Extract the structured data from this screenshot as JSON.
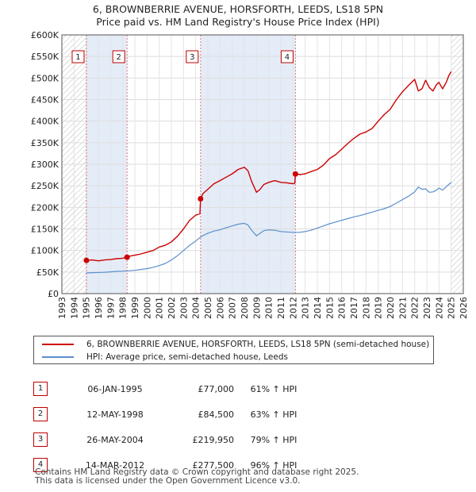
{
  "title_line1": "6, BROWNBERRIE AVENUE, HORSFORTH, LEEDS, LS18 5PN",
  "title_line2": "Price paid vs. HM Land Registry's House Price Index (HPI)",
  "legend": {
    "property": "6, BROWNBERRIE AVENUE, HORSFORTH, LEEDS, LS18 5PN (semi-detached house)",
    "hpi": "HPI: Average price, semi-detached house, Leeds"
  },
  "colors": {
    "property": "#cc0000",
    "hpi": "#5b8fcc",
    "shade": "#e4ecf8",
    "marker_line": "#dd7777"
  },
  "transactions": [
    {
      "num": "1",
      "date": "06-JAN-1995",
      "price": "£77,000",
      "hpi": "61% ↑ HPI"
    },
    {
      "num": "2",
      "date": "12-MAY-1998",
      "price": "£84,500",
      "hpi": "63% ↑ HPI"
    },
    {
      "num": "3",
      "date": "26-MAY-2004",
      "price": "£219,950",
      "hpi": "79% ↑ HPI"
    },
    {
      "num": "4",
      "date": "14-MAR-2012",
      "price": "£277,500",
      "hpi": "96% ↑ HPI"
    }
  ],
  "footer_line1": "Contains HM Land Registry data © Crown copyright and database right 2025.",
  "footer_line2": "This data is licensed under the Open Government Licence v3.0.",
  "chart_data": {
    "type": "line",
    "title": "6, BROWNBERRIE AVENUE, HORSFORTH, LEEDS, LS18 5PN",
    "subtitle": "Price paid vs. HM Land Registry's House Price Index (HPI)",
    "xlim": [
      1993,
      2026
    ],
    "ylim": [
      0,
      600000
    ],
    "x_ticks": [
      "1993",
      "1994",
      "1995",
      "1996",
      "1997",
      "1998",
      "1999",
      "2000",
      "2001",
      "2002",
      "2003",
      "2004",
      "2005",
      "2006",
      "2007",
      "2008",
      "2009",
      "2010",
      "2011",
      "2012",
      "2013",
      "2014",
      "2015",
      "2016",
      "2017",
      "2018",
      "2019",
      "2020",
      "2021",
      "2022",
      "2023",
      "2024",
      "2025",
      "2026"
    ],
    "y_ticks": [
      {
        "value": 0,
        "label": "£0"
      },
      {
        "value": 50000,
        "label": "£50K"
      },
      {
        "value": 100000,
        "label": "£100K"
      },
      {
        "value": 150000,
        "label": "£150K"
      },
      {
        "value": 200000,
        "label": "£200K"
      },
      {
        "value": 250000,
        "label": "£250K"
      },
      {
        "value": 300000,
        "label": "£300K"
      },
      {
        "value": 350000,
        "label": "£350K"
      },
      {
        "value": 400000,
        "label": "£400K"
      },
      {
        "value": 450000,
        "label": "£450K"
      },
      {
        "value": 500000,
        "label": "£500K"
      },
      {
        "value": 550000,
        "label": "£550K"
      },
      {
        "value": 600000,
        "label": "£600K"
      }
    ],
    "shaded_ranges": [
      [
        1995.02,
        1998.36
      ],
      [
        2004.4,
        2012.2
      ]
    ],
    "hatched_ranges": [
      [
        1993,
        1995.0
      ],
      [
        2025.0,
        2026
      ]
    ],
    "sales": [
      {
        "label": "1",
        "x": 1995.02,
        "y": 77000
      },
      {
        "label": "2",
        "x": 1998.36,
        "y": 84500
      },
      {
        "label": "3",
        "x": 2004.4,
        "y": 219950
      },
      {
        "label": "4",
        "x": 2012.2,
        "y": 277500
      }
    ],
    "series": [
      {
        "name": "6, BROWNBERRIE AVENUE, HORSFORTH, LEEDS, LS18 5PN (semi-detached house)",
        "x": [
          1995.02,
          1995.5,
          1996,
          1996.5,
          1997,
          1997.5,
          1998,
          1998.36,
          1998.6,
          1999,
          1999.5,
          2000,
          2000.5,
          2001,
          2001.5,
          2002,
          2002.5,
          2003,
          2003.5,
          2004,
          2004.35,
          2004.4,
          2004.6,
          2005,
          2005.5,
          2006,
          2006.5,
          2007,
          2007.5,
          2008,
          2008.3,
          2008.6,
          2009,
          2009.3,
          2009.6,
          2010,
          2010.5,
          2011,
          2011.5,
          2012,
          2012.15,
          2012.2,
          2012.6,
          2013,
          2013.5,
          2014,
          2014.5,
          2015,
          2015.5,
          2016,
          2016.5,
          2017,
          2017.5,
          2018,
          2018.5,
          2019,
          2019.5,
          2020,
          2020.5,
          2021,
          2021.5,
          2022,
          2022.3,
          2022.6,
          2022.9,
          2023.2,
          2023.5,
          2023.8,
          2024,
          2024.3,
          2024.6,
          2024.8,
          2025
        ],
        "y": [
          77000,
          78000,
          76000,
          78000,
          79000,
          81000,
          82000,
          84500,
          87000,
          89000,
          92000,
          96000,
          100000,
          108000,
          112000,
          120000,
          133000,
          150000,
          170000,
          182000,
          185000,
          219950,
          232000,
          242000,
          255000,
          262000,
          270000,
          278000,
          288000,
          293000,
          285000,
          260000,
          235000,
          242000,
          253000,
          258000,
          262000,
          258000,
          257000,
          255000,
          256000,
          277500,
          276000,
          278000,
          283000,
          288000,
          298000,
          313000,
          322000,
          335000,
          348000,
          360000,
          370000,
          375000,
          383000,
          400000,
          415000,
          428000,
          450000,
          468000,
          483000,
          497000,
          470000,
          475000,
          495000,
          478000,
          470000,
          485000,
          490000,
          475000,
          490000,
          505000,
          515000
        ]
      },
      {
        "name": "HPI: Average price, semi-detached house, Leeds",
        "x": [
          1995,
          1995.5,
          1996,
          1996.5,
          1997,
          1997.5,
          1998,
          1998.5,
          1999,
          1999.5,
          2000,
          2000.5,
          2001,
          2001.5,
          2002,
          2002.5,
          2003,
          2003.5,
          2004,
          2004.5,
          2005,
          2005.5,
          2006,
          2006.5,
          2007,
          2007.5,
          2008,
          2008.3,
          2008.6,
          2009,
          2009.3,
          2009.6,
          2010,
          2010.5,
          2011,
          2011.5,
          2012,
          2012.5,
          2013,
          2013.5,
          2014,
          2014.5,
          2015,
          2015.5,
          2016,
          2016.5,
          2017,
          2017.5,
          2018,
          2018.5,
          2019,
          2019.5,
          2020,
          2020.5,
          2021,
          2021.5,
          2022,
          2022.3,
          2022.6,
          2022.9,
          2023.2,
          2023.5,
          2023.8,
          2024,
          2024.3,
          2024.6,
          2024.8,
          2025
        ],
        "y": [
          48000,
          48500,
          49000,
          49500,
          50500,
          51500,
          52000,
          53000,
          54000,
          56000,
          58000,
          61000,
          65000,
          70000,
          78000,
          88000,
          100000,
          112000,
          122000,
          133000,
          140000,
          145000,
          148000,
          153000,
          157000,
          161000,
          163000,
          159000,
          147000,
          134000,
          140000,
          146000,
          148000,
          147000,
          144000,
          143000,
          142000,
          142000,
          144000,
          147000,
          152000,
          157000,
          162000,
          166000,
          170000,
          174000,
          178000,
          181000,
          185000,
          189000,
          193000,
          197000,
          202000,
          210000,
          218000,
          226000,
          236000,
          247000,
          242000,
          243000,
          235000,
          236000,
          240000,
          245000,
          240000,
          248000,
          253000,
          258000
        ]
      }
    ]
  }
}
